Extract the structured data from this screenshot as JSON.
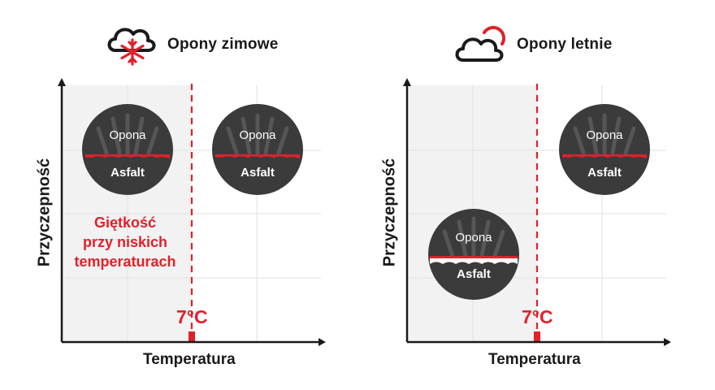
{
  "winter": {
    "title": "Opony zimowe",
    "icon": "snow-cloud-icon",
    "y_axis_label": "Przyczepność",
    "x_axis_label": "Temperatura",
    "threshold_label": "7°C",
    "annotation": [
      "Giętkość",
      "przy niskich",
      "temperaturach"
    ],
    "tires": [
      {
        "top": "Opona",
        "bottom": "Asfalt"
      },
      {
        "top": "Opona",
        "bottom": "Asfalt"
      }
    ]
  },
  "summer": {
    "title": "Opony letnie",
    "icon": "sun-cloud-icon",
    "y_axis_label": "Przyczepność",
    "x_axis_label": "Temperatura",
    "threshold_label": "7°C",
    "tires": [
      {
        "top": "Opona",
        "bottom": "Asfalt"
      },
      {
        "top": "Opona",
        "bottom": "Asfalt"
      }
    ]
  },
  "colors": {
    "accent": "#e2202a",
    "cold_zone": "#f2f2f2",
    "tire": "#3b3b3b",
    "axis": "#1a1a1a"
  }
}
